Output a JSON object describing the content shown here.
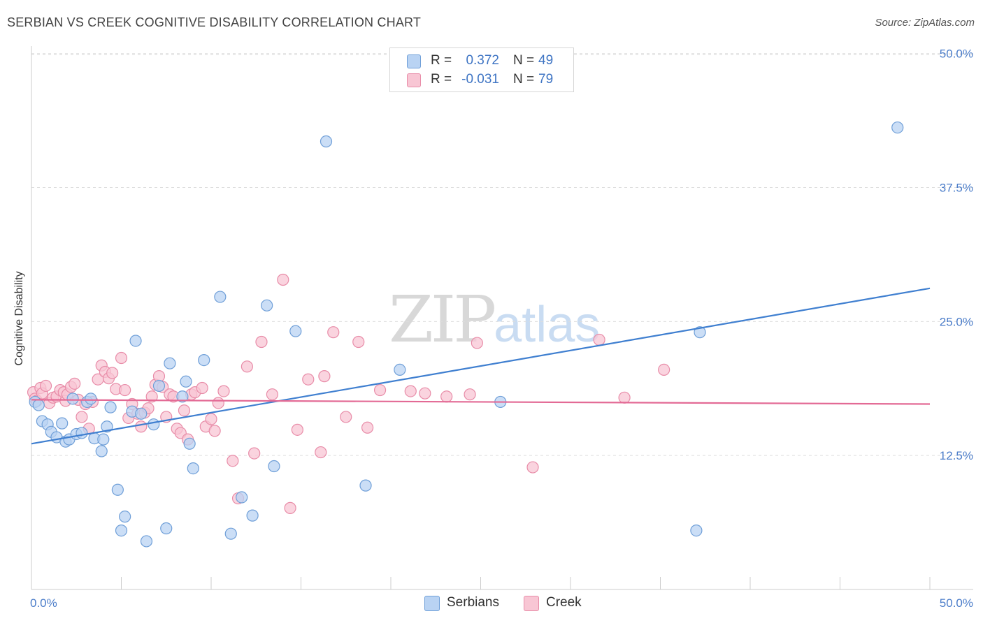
{
  "header": {
    "title": "SERBIAN VS CREEK COGNITIVE DISABILITY CORRELATION CHART",
    "source": "Source: ZipAtlas.com"
  },
  "watermark": {
    "zip": "ZIP",
    "atlas": "atlas"
  },
  "legend": {
    "r_label": "R =",
    "n_label": "N =",
    "rows": [
      {
        "series": "Serbians",
        "r": "0.372",
        "n": "49"
      },
      {
        "series": "Creek",
        "r": "-0.031",
        "n": "79"
      }
    ]
  },
  "colors": {
    "serbians_fill": "#b9d3f3",
    "serbians_stroke": "#6f9fd8",
    "serbians_line": "#3f7fd0",
    "creek_fill": "#f8c6d4",
    "creek_stroke": "#e88ca8",
    "creek_line": "#e36a95",
    "grid": "#dddddd",
    "tick_text": "#4a7cc9"
  },
  "chart_data": {
    "type": "scatter",
    "title": "SERBIAN VS CREEK COGNITIVE DISABILITY CORRELATION CHART",
    "xlabel": "",
    "ylabel": "Cognitive Disability",
    "xlim": [
      0,
      50
    ],
    "ylim": [
      0,
      52
    ],
    "x_tick_labels": [
      "0.0%",
      "50.0%"
    ],
    "y_ticks": [
      12.5,
      25.0,
      37.5,
      50.0
    ],
    "y_tick_labels": [
      "12.5%",
      "25.0%",
      "37.5%",
      "50.0%"
    ],
    "grid": true,
    "legend_position": "top-center",
    "series": [
      {
        "name": "Serbians",
        "trend": {
          "x": [
            0,
            50
          ],
          "y": [
            13.6,
            28.1
          ]
        },
        "points": [
          [
            0.2,
            17.5
          ],
          [
            0.4,
            17.2
          ],
          [
            0.6,
            15.7
          ],
          [
            0.9,
            15.4
          ],
          [
            1.1,
            14.7
          ],
          [
            1.4,
            14.2
          ],
          [
            1.7,
            15.5
          ],
          [
            1.9,
            13.8
          ],
          [
            2.1,
            14.0
          ],
          [
            2.3,
            17.8
          ],
          [
            2.5,
            14.5
          ],
          [
            2.8,
            14.6
          ],
          [
            3.1,
            17.5
          ],
          [
            3.3,
            17.8
          ],
          [
            3.5,
            14.1
          ],
          [
            3.9,
            12.9
          ],
          [
            4.0,
            14.0
          ],
          [
            4.2,
            15.2
          ],
          [
            4.4,
            17.0
          ],
          [
            4.8,
            9.3
          ],
          [
            5.0,
            5.5
          ],
          [
            5.2,
            6.8
          ],
          [
            5.6,
            16.6
          ],
          [
            5.8,
            23.2
          ],
          [
            6.1,
            16.4
          ],
          [
            6.4,
            4.5
          ],
          [
            6.8,
            15.4
          ],
          [
            7.1,
            19.0
          ],
          [
            7.5,
            5.7
          ],
          [
            7.7,
            21.1
          ],
          [
            8.4,
            18.0
          ],
          [
            8.6,
            19.4
          ],
          [
            8.8,
            13.6
          ],
          [
            9.0,
            11.3
          ],
          [
            9.6,
            21.4
          ],
          [
            10.5,
            27.3
          ],
          [
            11.1,
            5.2
          ],
          [
            11.7,
            8.6
          ],
          [
            12.3,
            6.9
          ],
          [
            13.1,
            26.5
          ],
          [
            13.5,
            11.5
          ],
          [
            14.7,
            24.1
          ],
          [
            16.4,
            41.8
          ],
          [
            18.6,
            9.7
          ],
          [
            20.5,
            20.5
          ],
          [
            26.1,
            17.5
          ],
          [
            37.0,
            5.5
          ],
          [
            37.2,
            24.0
          ],
          [
            48.2,
            43.1
          ]
        ]
      },
      {
        "name": "Creek",
        "trend": {
          "x": [
            0,
            50
          ],
          "y": [
            17.7,
            17.3
          ]
        },
        "points": [
          [
            0.1,
            18.4
          ],
          [
            0.2,
            17.8
          ],
          [
            0.3,
            17.6
          ],
          [
            0.5,
            18.8
          ],
          [
            0.6,
            18.3
          ],
          [
            0.8,
            19.0
          ],
          [
            1.0,
            17.4
          ],
          [
            1.2,
            17.9
          ],
          [
            1.4,
            18.0
          ],
          [
            1.6,
            18.6
          ],
          [
            1.8,
            18.4
          ],
          [
            1.9,
            17.6
          ],
          [
            2.0,
            18.2
          ],
          [
            2.2,
            18.9
          ],
          [
            2.4,
            19.2
          ],
          [
            2.6,
            17.7
          ],
          [
            2.8,
            16.1
          ],
          [
            3.0,
            17.3
          ],
          [
            3.2,
            15.0
          ],
          [
            3.4,
            17.5
          ],
          [
            3.7,
            19.6
          ],
          [
            3.9,
            20.9
          ],
          [
            4.1,
            20.3
          ],
          [
            4.3,
            19.7
          ],
          [
            4.5,
            20.2
          ],
          [
            4.7,
            18.7
          ],
          [
            5.0,
            21.6
          ],
          [
            5.2,
            18.6
          ],
          [
            5.4,
            16.0
          ],
          [
            5.6,
            17.3
          ],
          [
            5.9,
            16.4
          ],
          [
            6.1,
            15.2
          ],
          [
            6.3,
            16.5
          ],
          [
            6.5,
            16.9
          ],
          [
            6.7,
            18.0
          ],
          [
            6.9,
            19.1
          ],
          [
            7.1,
            19.9
          ],
          [
            7.3,
            18.9
          ],
          [
            7.5,
            16.1
          ],
          [
            7.7,
            18.2
          ],
          [
            7.9,
            18.0
          ],
          [
            8.1,
            15.0
          ],
          [
            8.3,
            14.6
          ],
          [
            8.5,
            16.7
          ],
          [
            8.7,
            14.0
          ],
          [
            8.9,
            18.2
          ],
          [
            9.1,
            18.4
          ],
          [
            9.5,
            18.8
          ],
          [
            9.7,
            15.2
          ],
          [
            10.0,
            15.9
          ],
          [
            10.2,
            14.8
          ],
          [
            10.4,
            17.4
          ],
          [
            10.7,
            18.5
          ],
          [
            11.2,
            12.0
          ],
          [
            11.5,
            8.5
          ],
          [
            12.0,
            20.8
          ],
          [
            12.4,
            12.7
          ],
          [
            12.8,
            23.1
          ],
          [
            13.4,
            18.2
          ],
          [
            14.0,
            28.9
          ],
          [
            14.4,
            7.6
          ],
          [
            14.8,
            14.9
          ],
          [
            15.4,
            19.6
          ],
          [
            16.1,
            12.8
          ],
          [
            16.3,
            19.9
          ],
          [
            16.8,
            24.0
          ],
          [
            17.5,
            16.1
          ],
          [
            18.2,
            23.1
          ],
          [
            18.7,
            15.1
          ],
          [
            19.4,
            18.6
          ],
          [
            21.1,
            18.5
          ],
          [
            21.9,
            18.3
          ],
          [
            23.1,
            18.0
          ],
          [
            24.4,
            18.2
          ],
          [
            24.8,
            23.0
          ],
          [
            27.9,
            11.4
          ],
          [
            31.6,
            23.3
          ],
          [
            33.0,
            17.9
          ],
          [
            35.2,
            20.5
          ]
        ]
      }
    ]
  }
}
